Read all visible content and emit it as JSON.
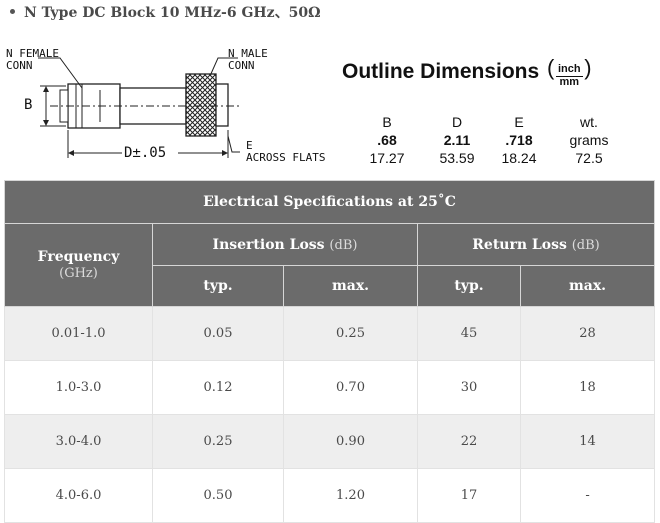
{
  "heading": "N Type DC Block 10 MHz-6 GHz、50Ω",
  "drawing": {
    "label_female": "N FEMALE\nCONN",
    "label_male": "N MALE\nCONN",
    "label_b": "B",
    "label_d": "D±.05",
    "label_e": "E\nACROSS FLATS"
  },
  "outline": {
    "title": "Outline Dimensions",
    "unit_top": "inch",
    "unit_bottom": "mm",
    "headers": [
      "B",
      "D",
      "E",
      "wt."
    ],
    "inch_row": [
      ".68",
      "2.11",
      ".718",
      "grams"
    ],
    "mm_row": [
      "17.27",
      "53.59",
      "18.24",
      "72.5"
    ]
  },
  "spec": {
    "title": "Electrical Specifications at 25˚C",
    "frequency": "Frequency",
    "frequency_unit": "(GHz)",
    "insertion_loss": "Insertion Loss",
    "insertion_loss_unit": "(dB)",
    "return_loss": "Return Loss",
    "return_loss_unit": "(dB)",
    "typ": "typ.",
    "max": "max.",
    "rows": [
      {
        "freq": "0.01-1.0",
        "il_typ": "0.05",
        "il_max": "0.25",
        "rl_typ": "45",
        "rl_max": "28"
      },
      {
        "freq": "1.0-3.0",
        "il_typ": "0.12",
        "il_max": "0.70",
        "rl_typ": "30",
        "rl_max": "18"
      },
      {
        "freq": "3.0-4.0",
        "il_typ": "0.25",
        "il_max": "0.90",
        "rl_typ": "22",
        "rl_max": "14"
      },
      {
        "freq": "4.0-6.0",
        "il_typ": "0.50",
        "il_max": "1.20",
        "rl_typ": "17",
        "rl_max": "-"
      }
    ]
  }
}
